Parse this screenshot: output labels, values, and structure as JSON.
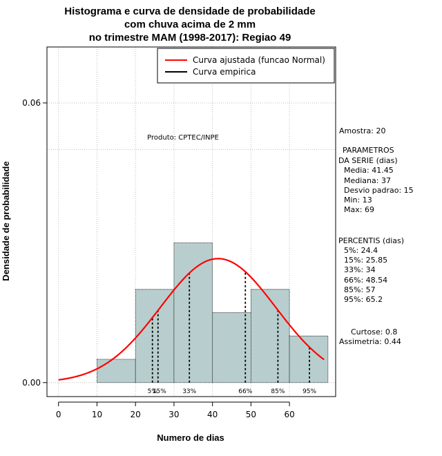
{
  "chart_data": {
    "type": "bar",
    "title": [
      "Histograma e curva de densidade de probabilidade",
      "com chuva acima de 2 mm",
      "no trimestre MAM (1998-2017): Regiao 49"
    ],
    "xlabel": "Numero de dias",
    "ylabel": "Densidade de probabilidade",
    "xlim": [
      -3,
      72
    ],
    "ylim": [
      -0.003,
      0.072
    ],
    "x_ticks": [
      0,
      10,
      20,
      30,
      40,
      50,
      60
    ],
    "y_ticks": [
      {
        "value": 0.0,
        "label": "0.00"
      },
      {
        "value": 0.06,
        "label": "0.06"
      }
    ],
    "bins": [
      {
        "start": 10,
        "end": 20,
        "density": 0.005
      },
      {
        "start": 20,
        "end": 30,
        "density": 0.02
      },
      {
        "start": 30,
        "end": 40,
        "density": 0.03
      },
      {
        "start": 40,
        "end": 50,
        "density": 0.015
      },
      {
        "start": 50,
        "end": 60,
        "density": 0.02
      },
      {
        "start": 60,
        "end": 70,
        "density": 0.01
      }
    ],
    "normal_fit": {
      "mean": 41.45,
      "sd": 15,
      "x_range": [
        0,
        69
      ]
    },
    "percentile_lines": [
      {
        "x": 24.4,
        "label": "5%"
      },
      {
        "x": 25.85,
        "label": "15%"
      },
      {
        "x": 34,
        "label": "33%"
      },
      {
        "x": 48.54,
        "label": "66%"
      },
      {
        "x": 57,
        "label": "85%"
      },
      {
        "x": 65.2,
        "label": "95%"
      }
    ],
    "reference_line_y": 0.05,
    "legend": [
      {
        "label": "Curva ajustada (funcao Normal)",
        "color": "#ff0000"
      },
      {
        "label": "Curva empirica",
        "color": "#000000"
      }
    ],
    "legend_position": "top-right",
    "annotation": "Produto: CPTEC/INPE",
    "colors": {
      "bar_fill": "#b8cece",
      "curve": "#ff0000",
      "grid": "#bbbbbb"
    }
  },
  "side_panel": {
    "amostra": "Amostra: 20",
    "params_title_1": "PARAMETROS",
    "params_title_2": "DA SERIE (dias)",
    "media": "Media: 41.45",
    "mediana": "Mediana: 37",
    "desvio": "Desvio padrao: 15",
    "min": "Min: 13",
    "max": "Max: 69",
    "percentis_title": "PERCENTIS (dias)",
    "p5": "5%: 24.4",
    "p15": "15%: 25.85",
    "p33": "33%: 34",
    "p66": "66%: 48.54",
    "p85": "85%: 57",
    "p95": "95%: 65.2",
    "curtose": "Curtose: 0.8",
    "assimetria": "Assimetria: 0.44"
  }
}
